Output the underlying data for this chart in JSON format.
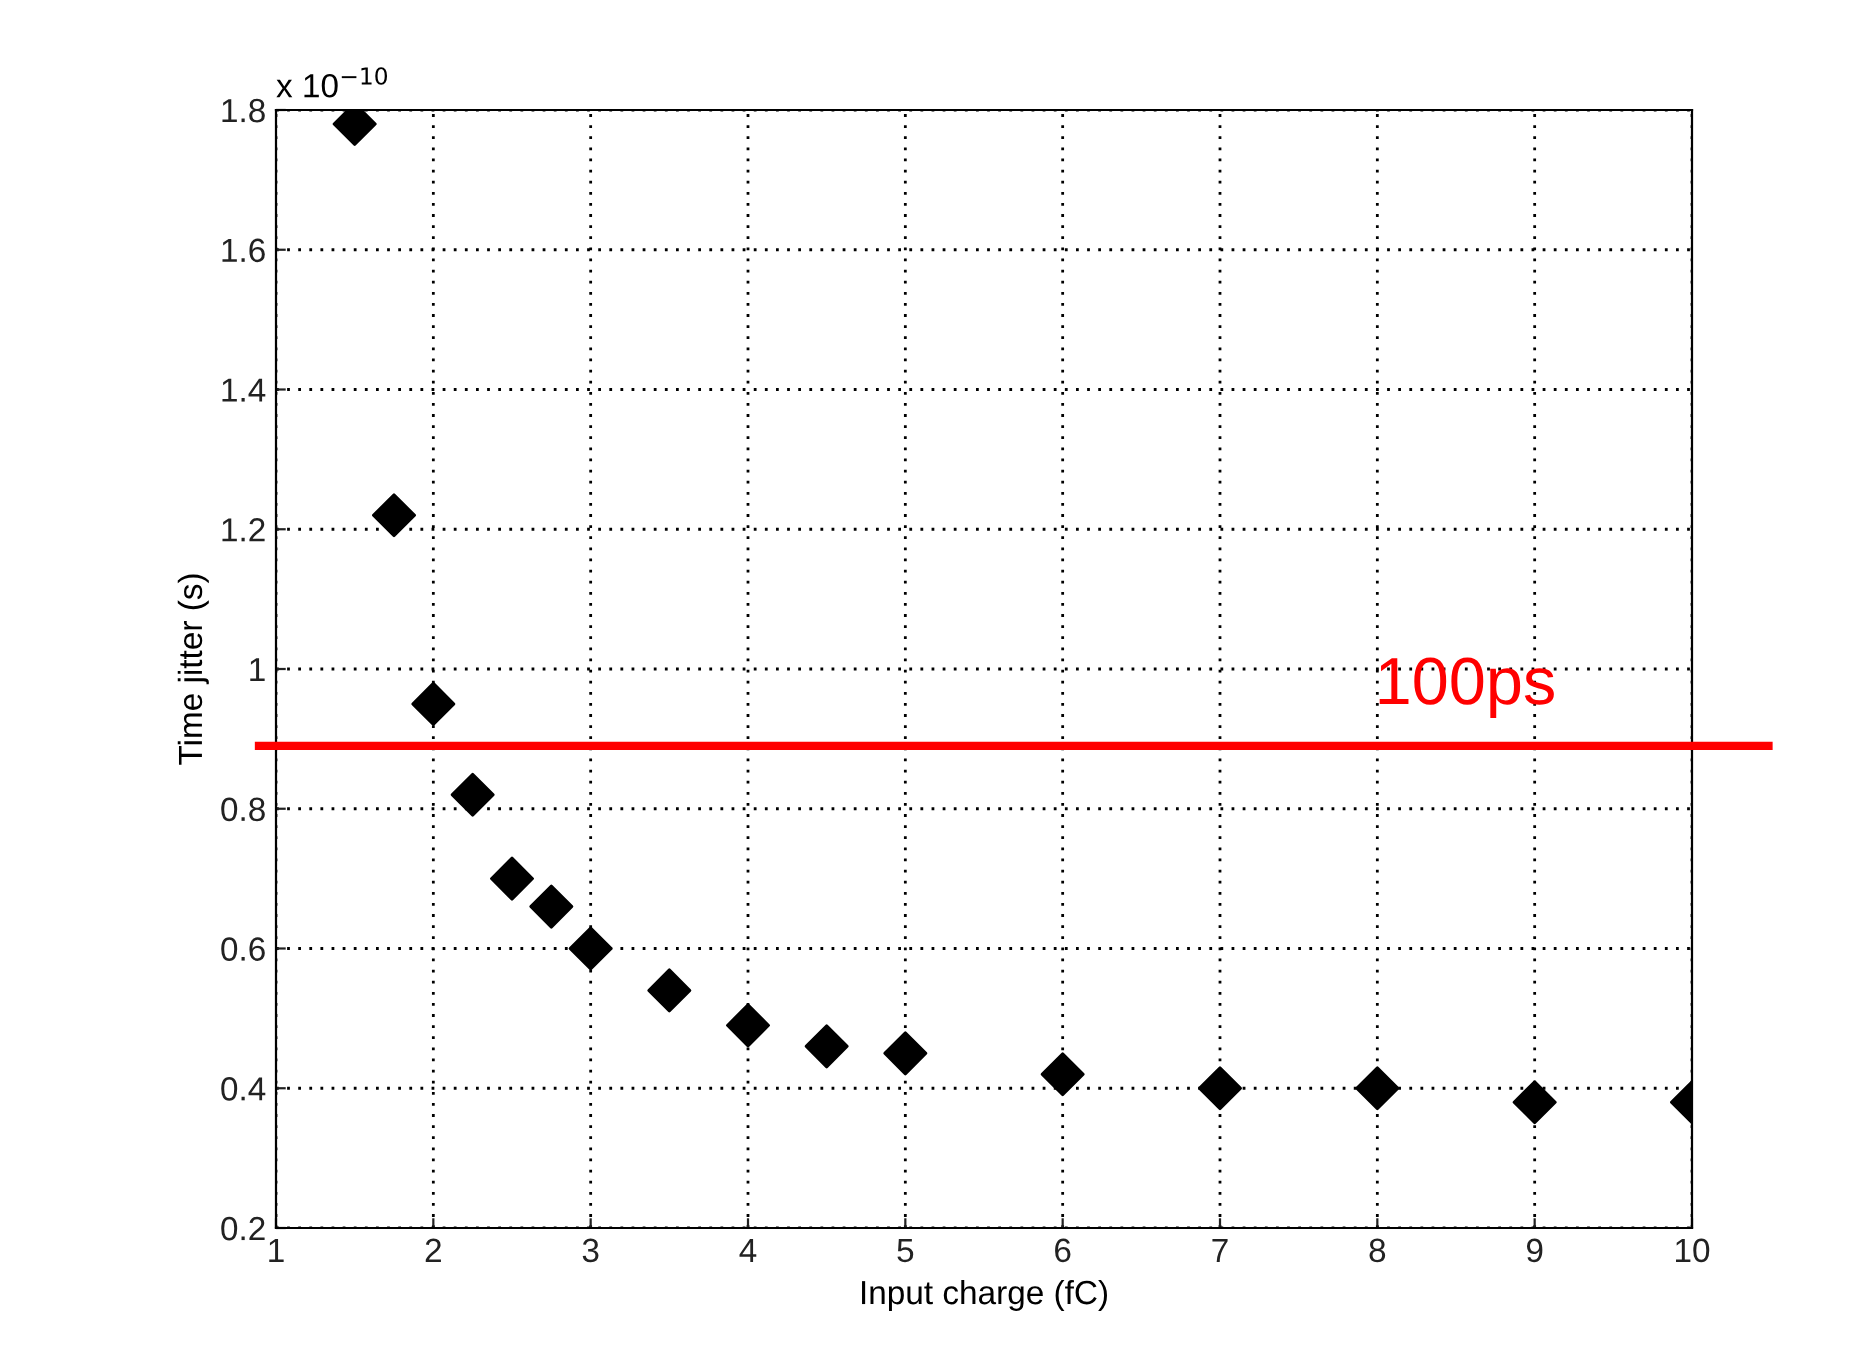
{
  "chart_data": {
    "type": "scatter",
    "xlabel": "Input charge (fC)",
    "ylabel": "Time jitter (s)",
    "annotations": [
      "x 10$^{−10}$"
    ],
    "x": [
      1.5,
      1.75,
      2,
      2.25,
      2.5,
      2.75,
      3,
      3.5,
      4,
      4.5,
      5,
      6,
      7,
      8,
      9,
      10
    ],
    "series": [
      {
        "color": "#000000",
        "values": [
          1.78,
          1.22,
          0.95,
          0.82,
          0.7,
          0.66,
          0.6,
          0.54,
          0.49,
          0.46,
          0.45,
          0.42,
          0.4,
          0.4,
          0.38,
          0.38
        ]
      }
    ],
    "marker": "diamond",
    "xlim": [
      1,
      10
    ],
    "xticks": [
      1,
      2,
      3,
      4,
      5,
      6,
      7,
      8,
      9,
      10
    ],
    "ylim": [
      0.2,
      1.8
    ],
    "yticks": [
      0.2,
      0.4,
      0.6,
      0.8,
      1,
      1.2,
      1.4,
      1.6,
      1.8
    ],
    "grid": true,
    "ref_lines": [
      {
        "axis": "y",
        "value": 0.89,
        "label": "100ps",
        "color": "#ff0000"
      }
    ]
  }
}
